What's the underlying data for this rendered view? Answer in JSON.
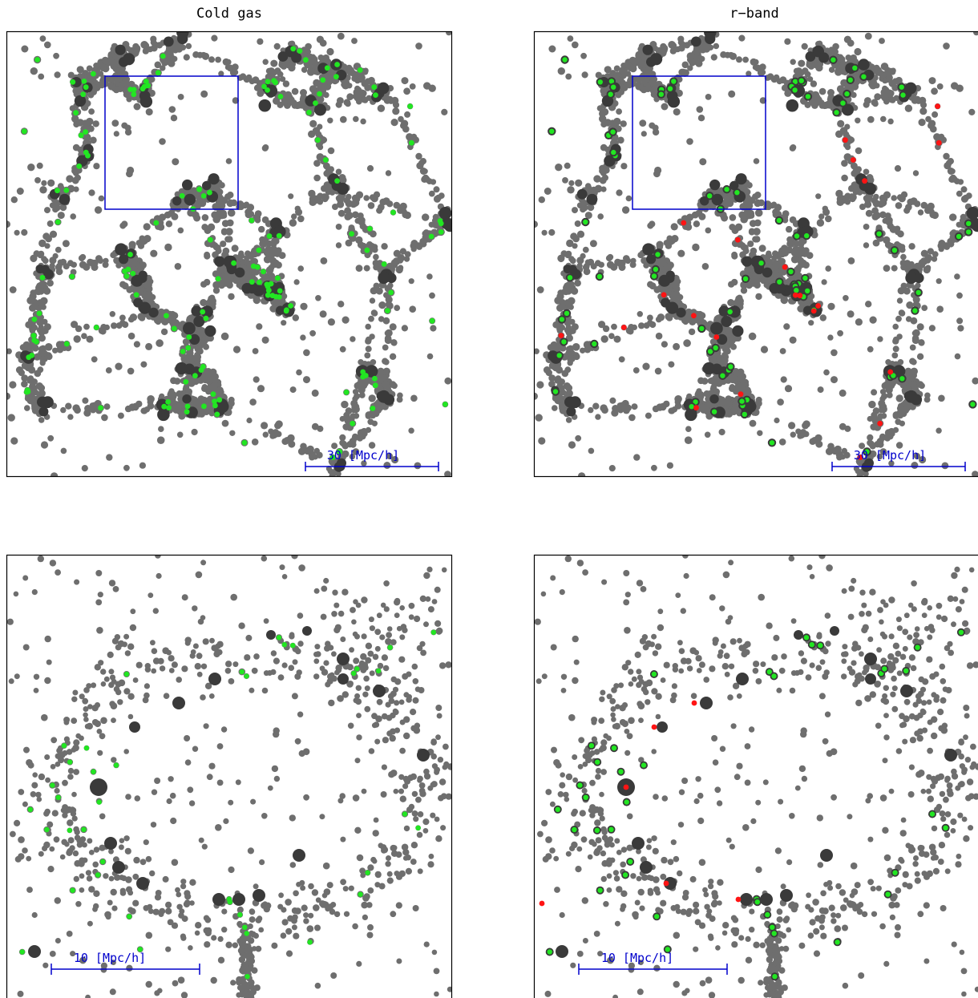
{
  "chart_data": [
    {
      "type": "scatter",
      "title": "Cold gas",
      "scale_bar_label": "30 [Mpc/h]",
      "scale_bar_mpc": 30,
      "zoom_box": true,
      "panel": "top-left",
      "marker_types": [
        "galaxy",
        "bright",
        "green",
        "red"
      ]
    },
    {
      "type": "scatter",
      "title": "r−band",
      "scale_bar_label": "30 [Mpc/h]",
      "scale_bar_mpc": 30,
      "zoom_box": true,
      "panel": "top-right",
      "marker_types": [
        "galaxy",
        "bright",
        "green",
        "red"
      ]
    },
    {
      "type": "scatter",
      "title": "",
      "scale_bar_label": "10 [Mpc/h]",
      "scale_bar_mpc": 10,
      "zoom_box": false,
      "panel": "bottom-left",
      "marker_types": [
        "galaxy",
        "bright",
        "green"
      ]
    },
    {
      "type": "scatter",
      "title": "",
      "scale_bar_label": "10 [Mpc/h]",
      "scale_bar_mpc": 10,
      "zoom_box": false,
      "panel": "bottom-right",
      "marker_types": [
        "galaxy",
        "bright",
        "green",
        "red"
      ]
    }
  ],
  "colors": {
    "galaxy": "#6e6e6e",
    "bright": "#3a3a3a",
    "green": "#22e622",
    "red": "#ff1414",
    "frame": "#000000",
    "annotation": "#0000cc"
  }
}
